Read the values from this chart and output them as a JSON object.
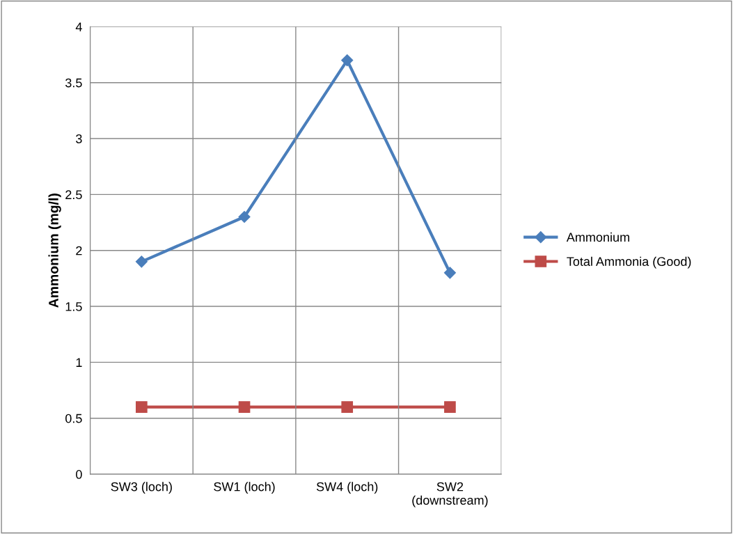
{
  "chart_data": {
    "type": "line",
    "ylabel": "Ammonium (mg/l)",
    "categories": [
      "SW3 (loch)",
      "SW1 (loch)",
      "SW4 (loch)",
      "SW2\n(downstream)"
    ],
    "series": [
      {
        "name": "Ammonium",
        "color": "#4a7ebb",
        "values": [
          1.9,
          2.3,
          3.7,
          1.8
        ],
        "marker": "diamond"
      },
      {
        "name": "Total Ammonia (Good)",
        "color": "#be4b48",
        "values": [
          0.6,
          0.6,
          0.6,
          0.6
        ],
        "marker": "square"
      }
    ],
    "ylim": [
      0,
      4
    ],
    "yticks": [
      0,
      0.5,
      1,
      1.5,
      2,
      2.5,
      3,
      3.5,
      4
    ],
    "grid": true,
    "legend": "right",
    "line_style": "solid"
  }
}
